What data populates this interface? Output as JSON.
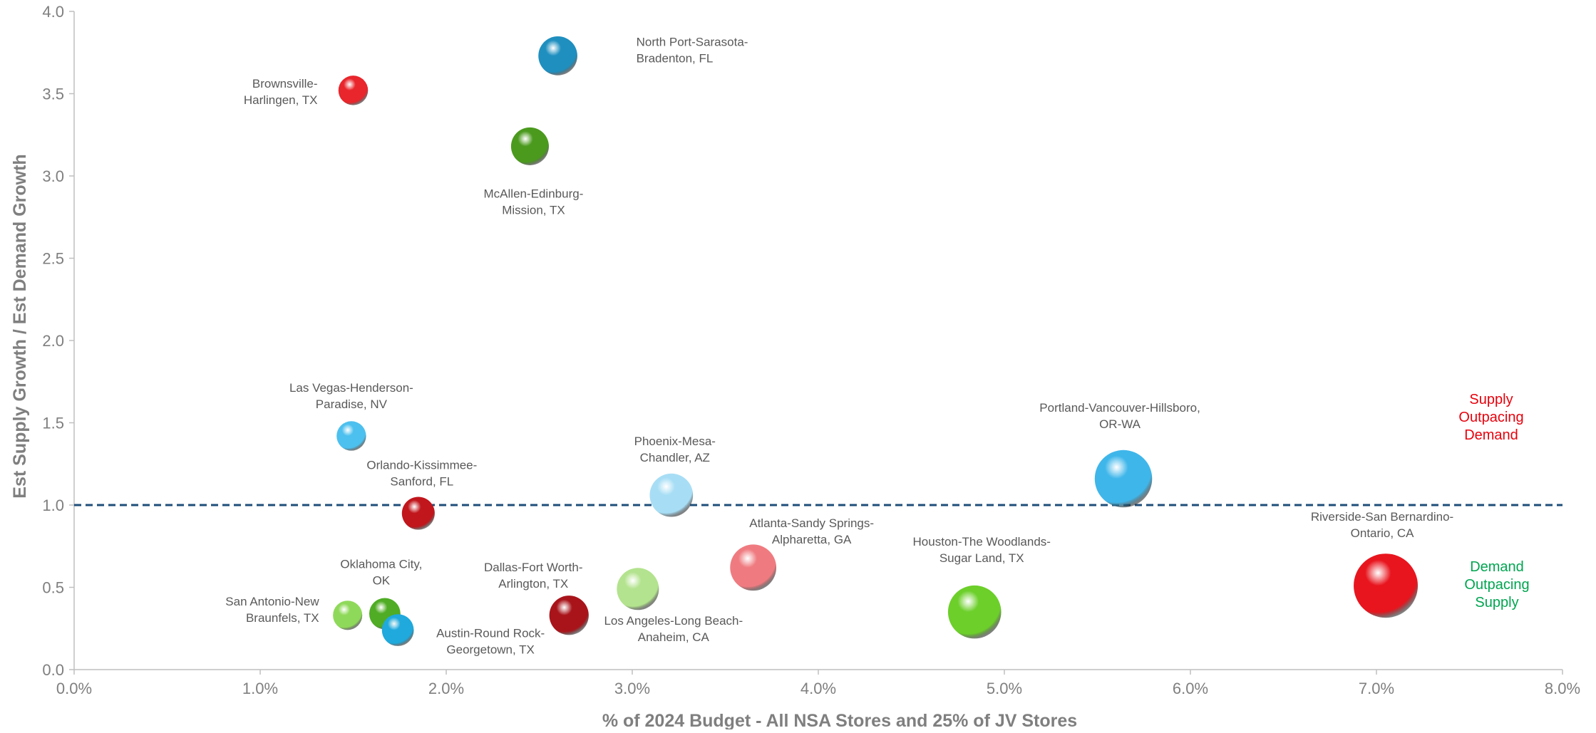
{
  "chart_data": {
    "type": "bubble",
    "title": "",
    "xlabel": "% of 2024 Budget - All NSA Stores and 25% of JV Stores",
    "ylabel": "Est Supply Growth / Est Demand Growth",
    "xlim": [
      0,
      0.08
    ],
    "ylim": [
      0,
      4.0
    ],
    "x_ticks": [
      "0.0%",
      "1.0%",
      "2.0%",
      "3.0%",
      "4.0%",
      "5.0%",
      "6.0%",
      "7.0%",
      "8.0%"
    ],
    "y_ticks": [
      "0.0",
      "0.5",
      "1.0",
      "1.5",
      "2.0",
      "2.5",
      "3.0",
      "3.5",
      "4.0"
    ],
    "reference_line": {
      "y": 1.0,
      "style": "dashed",
      "color": "#1f4e79"
    },
    "grid": false,
    "annotations": {
      "upper": [
        "Supply",
        "Outpacing",
        "Demand"
      ],
      "lower": [
        "Demand",
        "Outpacing",
        "Supply"
      ]
    },
    "points": [
      {
        "label": [
          "North Port-Sarasota-",
          "Bradenton, FL"
        ],
        "x": 0.026,
        "y": 3.73,
        "size": 0.026,
        "color": "#1f8fbf"
      },
      {
        "label": [
          "Brownsville-",
          "Harlingen, TX"
        ],
        "x": 0.015,
        "y": 3.52,
        "size": 0.015,
        "color": "#e8262c"
      },
      {
        "label": [
          "McAllen-Edinburg-",
          "Mission, TX"
        ],
        "x": 0.0245,
        "y": 3.18,
        "size": 0.0245,
        "color": "#4b9a1e"
      },
      {
        "label": [
          "Las Vegas-Henderson-",
          "Paradise, NV"
        ],
        "x": 0.0149,
        "y": 1.42,
        "size": 0.0149,
        "color": "#4cc0ee"
      },
      {
        "label": [
          "Orlando-Kissimmee-",
          "Sanford, FL"
        ],
        "x": 0.0185,
        "y": 0.95,
        "size": 0.0185,
        "color": "#c0161c"
      },
      {
        "label": [
          "Phoenix-Mesa-",
          "Chandler, AZ"
        ],
        "x": 0.0321,
        "y": 1.06,
        "size": 0.0321,
        "color": "#a8def5"
      },
      {
        "label": [
          "Portland-Vancouver-Hillsboro,",
          "OR-WA"
        ],
        "x": 0.0564,
        "y": 1.16,
        "size": 0.0564,
        "color": "#3fb6ea"
      },
      {
        "label": [
          "Atlanta-Sandy Springs-",
          "Alpharetta, GA"
        ],
        "x": 0.0365,
        "y": 0.62,
        "size": 0.0365,
        "color": "#ef7b80"
      },
      {
        "label": [
          "Houston-The Woodlands-",
          "Sugar Land, TX"
        ],
        "x": 0.0484,
        "y": 0.35,
        "size": 0.0484,
        "color": "#6ccf2a"
      },
      {
        "label": [
          "Riverside-San Bernardino-",
          "Ontario, CA"
        ],
        "x": 0.0705,
        "y": 0.51,
        "size": 0.0705,
        "color": "#e8151e"
      },
      {
        "label": [
          "Oklahoma City,",
          "OK"
        ],
        "x": 0.0167,
        "y": 0.34,
        "size": 0.0167,
        "color": "#4fac24"
      },
      {
        "label": [
          "San Antonio-New",
          "Braunfels, TX"
        ],
        "x": 0.0147,
        "y": 0.33,
        "size": 0.0147,
        "color": "#8fd95a"
      },
      {
        "label": [
          "Austin-Round Rock-",
          "Georgetown, TX"
        ],
        "x": 0.0174,
        "y": 0.24,
        "size": 0.0174,
        "color": "#1fa9dc"
      },
      {
        "label": [
          "Dallas-Fort Worth-",
          "Arlington, TX"
        ],
        "x": 0.0266,
        "y": 0.33,
        "size": 0.0266,
        "color": "#a8141a"
      },
      {
        "label": [
          "Los Angeles-Long Beach-",
          "Anaheim, CA"
        ],
        "x": 0.0303,
        "y": 0.49,
        "size": 0.0303,
        "color": "#b3e38e"
      }
    ]
  }
}
